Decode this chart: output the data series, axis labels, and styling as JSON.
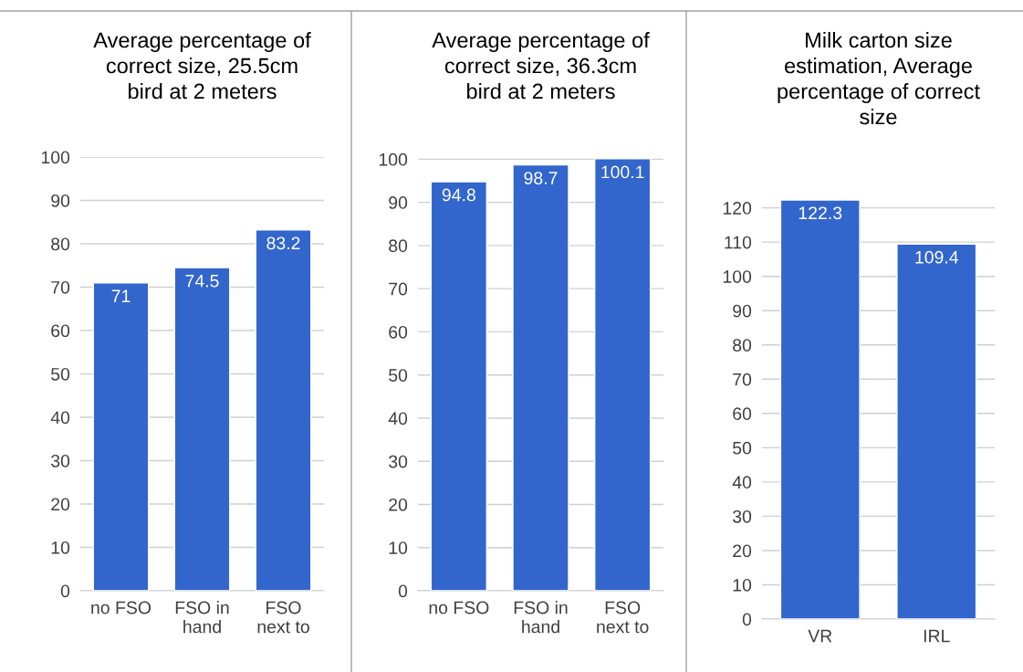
{
  "chart_data": [
    {
      "type": "bar",
      "title": "Average percentage of\ncorrect size, 25.5cm\nbird at 2 meters",
      "categories": [
        "no FSO",
        "FSO in\nhand",
        "FSO\nnext to"
      ],
      "values": [
        71,
        74.5,
        83.2
      ],
      "color": "#3366cc",
      "ylim": [
        0,
        100
      ],
      "yticks": [
        0,
        10,
        20,
        30,
        40,
        50,
        60,
        70,
        80,
        90,
        100
      ],
      "grid": "y",
      "data_labels": true
    },
    {
      "type": "bar",
      "title": "Average percentage of\ncorrect size, 36.3cm\nbird at 2 meters",
      "categories": [
        "no FSO",
        "FSO in\nhand",
        "FSO\nnext to"
      ],
      "values": [
        94.8,
        98.7,
        100.1
      ],
      "color": "#3366cc",
      "ylim": [
        0,
        100.5
      ],
      "yticks": [
        0,
        10,
        20,
        30,
        40,
        50,
        60,
        70,
        80,
        90,
        100
      ],
      "grid": "y",
      "data_labels": true
    },
    {
      "type": "bar",
      "title": "Milk carton size\nestimation, Average\npercentage of correct\nsize",
      "categories": [
        "VR",
        "IRL"
      ],
      "values": [
        122.3,
        109.4
      ],
      "color": "#3366cc",
      "ylim": [
        0,
        122.3
      ],
      "yticks": [
        0,
        10,
        20,
        30,
        40,
        50,
        60,
        70,
        80,
        90,
        100,
        110,
        120
      ],
      "grid": "y",
      "data_labels": true
    }
  ]
}
